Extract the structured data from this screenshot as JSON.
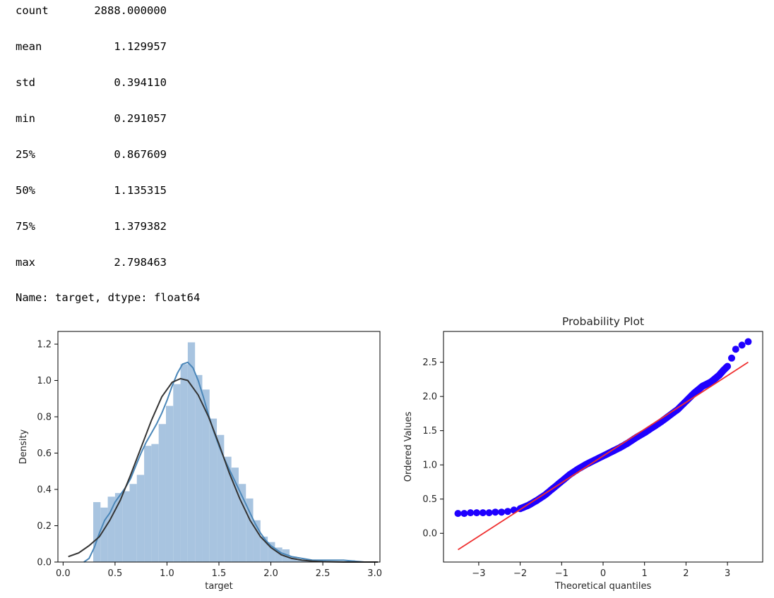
{
  "output": {
    "stats": [
      {
        "label": "count",
        "value": "2888.000000"
      },
      {
        "label": "mean",
        "value": "1.129957"
      },
      {
        "label": "std",
        "value": "0.394110"
      },
      {
        "label": "min",
        "value": "0.291057"
      },
      {
        "label": "25%",
        "value": "0.867609"
      },
      {
        "label": "50%",
        "value": "1.135315"
      },
      {
        "label": "75%",
        "value": "1.379382"
      },
      {
        "label": "max",
        "value": "2.798463"
      }
    ],
    "series_info": "Name: target, dtype: float64"
  },
  "chart_data": [
    {
      "type": "bar",
      "subtype": "histogram-with-kde-and-normal-fit",
      "title": "",
      "xlabel": "target",
      "ylabel": "Density",
      "xlim": [
        -0.05,
        3.05
      ],
      "ylim": [
        0,
        1.27
      ],
      "xticks": [
        "0.0",
        "0.5",
        "1.0",
        "1.5",
        "2.0",
        "2.5",
        "3.0"
      ],
      "yticks": [
        "0.0",
        "0.2",
        "0.4",
        "0.6",
        "0.8",
        "1.0",
        "1.2"
      ],
      "bar_color": "#a8c4e0",
      "bin_width": 0.07,
      "bins": [
        {
          "x": 0.29,
          "height": 0.33
        },
        {
          "x": 0.36,
          "height": 0.3
        },
        {
          "x": 0.43,
          "height": 0.36
        },
        {
          "x": 0.5,
          "height": 0.38
        },
        {
          "x": 0.57,
          "height": 0.39
        },
        {
          "x": 0.64,
          "height": 0.43
        },
        {
          "x": 0.71,
          "height": 0.48
        },
        {
          "x": 0.78,
          "height": 0.64
        },
        {
          "x": 0.85,
          "height": 0.65
        },
        {
          "x": 0.92,
          "height": 0.76
        },
        {
          "x": 0.99,
          "height": 0.86
        },
        {
          "x": 1.06,
          "height": 0.98
        },
        {
          "x": 1.13,
          "height": 1.09
        },
        {
          "x": 1.2,
          "height": 1.21
        },
        {
          "x": 1.27,
          "height": 1.03
        },
        {
          "x": 1.34,
          "height": 0.95
        },
        {
          "x": 1.41,
          "height": 0.79
        },
        {
          "x": 1.48,
          "height": 0.7
        },
        {
          "x": 1.55,
          "height": 0.58
        },
        {
          "x": 1.62,
          "height": 0.52
        },
        {
          "x": 1.69,
          "height": 0.43
        },
        {
          "x": 1.76,
          "height": 0.35
        },
        {
          "x": 1.83,
          "height": 0.23
        },
        {
          "x": 1.9,
          "height": 0.14
        },
        {
          "x": 1.97,
          "height": 0.11
        },
        {
          "x": 2.04,
          "height": 0.08
        },
        {
          "x": 2.11,
          "height": 0.07
        },
        {
          "x": 2.18,
          "height": 0.03
        },
        {
          "x": 2.25,
          "height": 0.01
        },
        {
          "x": 2.32,
          "height": 0.01
        },
        {
          "x": 2.46,
          "height": 0.01
        },
        {
          "x": 2.74,
          "height": 0.01
        }
      ],
      "series": [
        {
          "kind": "kde",
          "color": "#4a86b8",
          "x": [
            0.2,
            0.25,
            0.3,
            0.35,
            0.4,
            0.45,
            0.5,
            0.55,
            0.6,
            0.65,
            0.7,
            0.75,
            0.8,
            0.85,
            0.9,
            0.95,
            1.0,
            1.05,
            1.1,
            1.15,
            1.2,
            1.25,
            1.3,
            1.35,
            1.4,
            1.45,
            1.5,
            1.55,
            1.6,
            1.65,
            1.7,
            1.75,
            1.8,
            1.85,
            1.9,
            1.95,
            2.0,
            2.05,
            2.1,
            2.15,
            2.2,
            2.3,
            2.4,
            2.5,
            2.6,
            2.7,
            2.8,
            2.9
          ],
          "values": [
            0.0,
            0.02,
            0.08,
            0.16,
            0.23,
            0.27,
            0.33,
            0.37,
            0.41,
            0.46,
            0.53,
            0.6,
            0.66,
            0.71,
            0.76,
            0.82,
            0.89,
            0.97,
            1.04,
            1.09,
            1.1,
            1.07,
            1.0,
            0.91,
            0.81,
            0.72,
            0.64,
            0.57,
            0.51,
            0.45,
            0.39,
            0.33,
            0.27,
            0.21,
            0.16,
            0.12,
            0.09,
            0.07,
            0.05,
            0.04,
            0.03,
            0.02,
            0.01,
            0.01,
            0.01,
            0.01,
            0.005,
            0.0
          ]
        },
        {
          "kind": "normal-fit",
          "color": "#333333",
          "x": [
            0.05,
            0.15,
            0.25,
            0.35,
            0.45,
            0.55,
            0.65,
            0.75,
            0.85,
            0.95,
            1.05,
            1.13,
            1.2,
            1.3,
            1.4,
            1.5,
            1.6,
            1.7,
            1.8,
            1.9,
            2.0,
            2.1,
            2.2,
            2.3,
            2.4,
            2.5,
            2.7,
            2.9,
            3.03
          ],
          "values": [
            0.03,
            0.05,
            0.09,
            0.14,
            0.23,
            0.34,
            0.48,
            0.63,
            0.78,
            0.91,
            0.99,
            1.01,
            1.0,
            0.92,
            0.8,
            0.65,
            0.49,
            0.35,
            0.23,
            0.14,
            0.08,
            0.04,
            0.02,
            0.01,
            0.005,
            0.002,
            0.0,
            0.0,
            0.0
          ]
        }
      ]
    },
    {
      "type": "scatter",
      "title": "Probability Plot",
      "xlabel": "Theoretical quantiles",
      "ylabel": "Ordered Values",
      "xlim": [
        -3.85,
        3.85
      ],
      "ylim": [
        -0.42,
        2.95
      ],
      "xticks": [
        "−3",
        "−2",
        "−1",
        "0",
        "1",
        "2",
        "3"
      ],
      "yticks": [
        "0.0",
        "0.5",
        "1.0",
        "1.5",
        "2.0",
        "2.5"
      ],
      "marker_color": "#1f00ff",
      "line_color": "#ef3030",
      "fit_line": {
        "x": [
          -3.5,
          3.5
        ],
        "y": [
          -0.24,
          2.5
        ]
      },
      "points": {
        "x": [
          -3.5,
          -3.35,
          -3.2,
          -3.05,
          -2.9,
          -2.75,
          -2.6,
          -2.45,
          -2.3,
          -2.15,
          -2.0,
          -1.8,
          -1.6,
          -1.4,
          -1.2,
          -1.0,
          -0.8,
          -0.6,
          -0.4,
          -0.2,
          0.0,
          0.2,
          0.4,
          0.6,
          0.8,
          1.0,
          1.2,
          1.4,
          1.6,
          1.8,
          2.0,
          2.1,
          2.2,
          2.3,
          2.4,
          2.5,
          2.6,
          2.7,
          2.8,
          2.9,
          3.0,
          3.1,
          3.2,
          3.35,
          3.5
        ],
        "y": [
          0.29,
          0.29,
          0.3,
          0.3,
          0.3,
          0.3,
          0.31,
          0.31,
          0.32,
          0.34,
          0.36,
          0.41,
          0.48,
          0.56,
          0.66,
          0.76,
          0.86,
          0.94,
          1.01,
          1.07,
          1.13,
          1.19,
          1.25,
          1.32,
          1.4,
          1.47,
          1.55,
          1.63,
          1.72,
          1.81,
          1.93,
          1.99,
          2.05,
          2.1,
          2.15,
          2.18,
          2.21,
          2.26,
          2.31,
          2.38,
          2.44,
          2.56,
          2.69,
          2.75,
          2.8
        ]
      }
    }
  ]
}
